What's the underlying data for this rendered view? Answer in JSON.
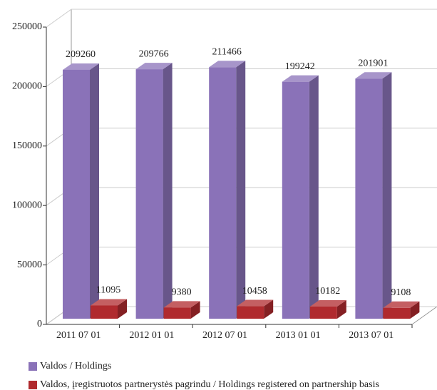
{
  "chart_data": {
    "type": "bar3d",
    "categories": [
      "2011 07 01",
      "2012 01 01",
      "2012 07 01",
      "2013 01 01",
      "2013 07 01"
    ],
    "series": [
      {
        "name": "Valdos / Holdings",
        "color": "#8a72b8",
        "values": [
          209260,
          209766,
          211466,
          199242,
          201901
        ]
      },
      {
        "name": "Valdos, įregistruotos partnerystės pagrindu / Holdings registered on partnership basis",
        "color": "#b02a2e",
        "values": [
          11095,
          9380,
          10458,
          10182,
          9108
        ]
      }
    ],
    "ylim": [
      0,
      250000
    ],
    "yticks": [
      0,
      50000,
      100000,
      150000,
      200000,
      250000
    ],
    "grid": true,
    "legend": "bottom"
  }
}
